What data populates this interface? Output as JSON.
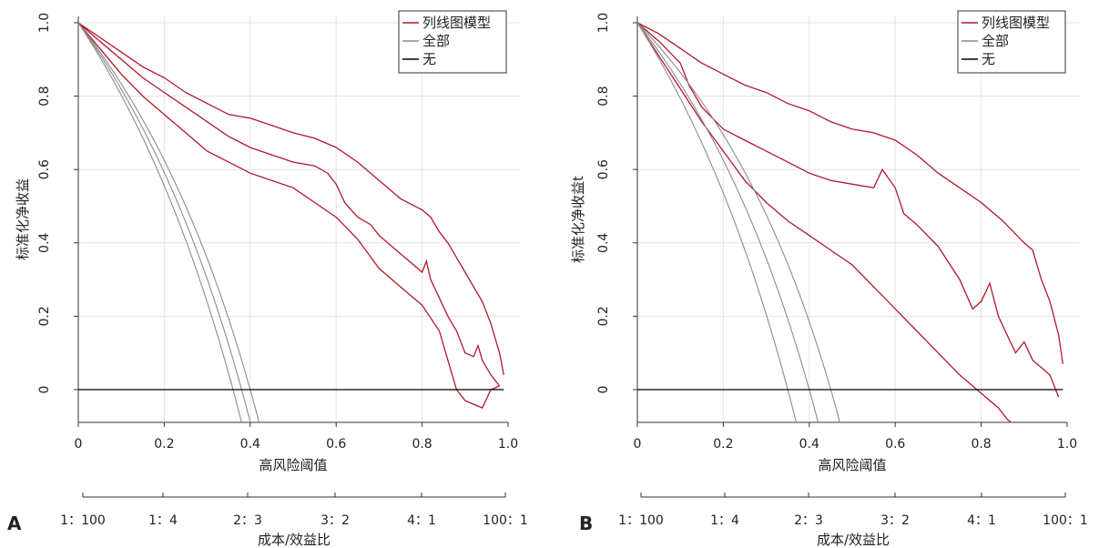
{
  "figure": {
    "panels": [
      {
        "letter": "A",
        "ylabel": "标准化净收益",
        "xlabel": "高风险阈值",
        "cost_label": "成本/效益比",
        "cost_ticks": [
          "1：100",
          "1：4",
          "2：3",
          "3：2",
          "4：1",
          "100：1"
        ]
      },
      {
        "letter": "B",
        "ylabel": "标准化净收益t",
        "xlabel": "高风险阈值",
        "cost_label": "成本/效益比",
        "cost_ticks": [
          "1：100",
          "1：4",
          "2：3",
          "3：2",
          "4：1",
          "100：1"
        ]
      }
    ]
  },
  "chart_data": [
    {
      "type": "line",
      "panel": "A",
      "title": "",
      "xlabel": "高风险阈值",
      "ylabel": "标准化净收益",
      "xlim": [
        0,
        1.0
      ],
      "ylim": [
        -0.09,
        1.0
      ],
      "x_ticks": [
        "0",
        "0.2",
        "0.4",
        "0.6",
        "0.8",
        "1.0"
      ],
      "y_ticks": [
        "0",
        "0.2",
        "0.4",
        "0.6",
        "0.8",
        "1.0"
      ],
      "grid": true,
      "legend_position": "top-right",
      "legend": [
        {
          "label": "列线图模型",
          "color": "#b2182b"
        },
        {
          "label": "全部",
          "color": "#8c8c8c"
        },
        {
          "label": "无",
          "color": "#000000"
        }
      ],
      "secondary_axis": {
        "label": "成本/效益比",
        "ticks": [
          "1：100",
          "1：4",
          "2：3",
          "3：2",
          "4：1",
          "100：1"
        ]
      },
      "series": [
        {
          "name": "列线图模型",
          "color": "#b2182b",
          "x": [
            0,
            0.05,
            0.1,
            0.15,
            0.2,
            0.25,
            0.3,
            0.35,
            0.4,
            0.45,
            0.5,
            0.55,
            0.6,
            0.65,
            0.7,
            0.75,
            0.8,
            0.82,
            0.84,
            0.86,
            0.88,
            0.9,
            0.92,
            0.94,
            0.96,
            0.98,
            0.99
          ],
          "y": [
            1.0,
            0.96,
            0.92,
            0.88,
            0.85,
            0.81,
            0.78,
            0.75,
            0.74,
            0.72,
            0.7,
            0.685,
            0.66,
            0.62,
            0.57,
            0.52,
            0.49,
            0.47,
            0.43,
            0.4,
            0.36,
            0.32,
            0.28,
            0.24,
            0.18,
            0.1,
            0.04
          ]
        },
        {
          "name": "",
          "color": "#b2182b",
          "x": [
            0,
            0.05,
            0.1,
            0.15,
            0.2,
            0.25,
            0.3,
            0.35,
            0.4,
            0.45,
            0.5,
            0.55,
            0.58,
            0.6,
            0.62,
            0.65,
            0.68,
            0.7,
            0.72,
            0.75,
            0.78,
            0.8,
            0.81,
            0.82,
            0.84,
            0.86,
            0.88,
            0.9,
            0.92,
            0.93,
            0.94,
            0.96,
            0.98
          ],
          "y": [
            1.0,
            0.95,
            0.9,
            0.85,
            0.81,
            0.77,
            0.73,
            0.69,
            0.66,
            0.64,
            0.62,
            0.61,
            0.59,
            0.56,
            0.51,
            0.47,
            0.45,
            0.42,
            0.4,
            0.37,
            0.34,
            0.32,
            0.35,
            0.3,
            0.25,
            0.2,
            0.16,
            0.1,
            0.09,
            0.12,
            0.08,
            0.04,
            0.01
          ]
        },
        {
          "name": "",
          "color": "#b2182b",
          "x": [
            0,
            0.05,
            0.1,
            0.15,
            0.2,
            0.25,
            0.3,
            0.35,
            0.4,
            0.45,
            0.5,
            0.55,
            0.6,
            0.65,
            0.7,
            0.75,
            0.8,
            0.84,
            0.86,
            0.88,
            0.9,
            0.92,
            0.94,
            0.96,
            0.98
          ],
          "y": [
            1.0,
            0.93,
            0.86,
            0.8,
            0.75,
            0.7,
            0.65,
            0.62,
            0.59,
            0.57,
            0.55,
            0.51,
            0.47,
            0.41,
            0.33,
            0.28,
            0.23,
            0.16,
            0.08,
            0.0,
            -0.03,
            -0.04,
            -0.05,
            0.0,
            0.01
          ]
        },
        {
          "name": "全部",
          "color": "#8c8c8c",
          "prevalence": 0.36
        },
        {
          "name": "",
          "color": "#8c8c8c",
          "prevalence": 0.38
        },
        {
          "name": "",
          "color": "#8c8c8c",
          "prevalence": 0.4
        },
        {
          "name": "无",
          "color": "#000000",
          "x": [
            0,
            0.99
          ],
          "y": [
            0,
            0
          ]
        }
      ]
    },
    {
      "type": "line",
      "panel": "B",
      "title": "",
      "xlabel": "高风险阈值",
      "ylabel": "标准化净收益t",
      "xlim": [
        0,
        1.0
      ],
      "ylim": [
        -0.09,
        1.0
      ],
      "x_ticks": [
        "0",
        "0.2",
        "0.4",
        "0.6",
        "0.8",
        "1.0"
      ],
      "y_ticks": [
        "0",
        "0.2",
        "0.4",
        "0.6",
        "0.8",
        "1.0"
      ],
      "grid": true,
      "legend_position": "top-right",
      "legend": [
        {
          "label": "列线图模型",
          "color": "#b2182b"
        },
        {
          "label": "全部",
          "color": "#8c8c8c"
        },
        {
          "label": "无",
          "color": "#000000"
        }
      ],
      "secondary_axis": {
        "label": "成本/效益比",
        "ticks": [
          "1：100",
          "1：4",
          "2：3",
          "3：2",
          "4：1",
          "100：1"
        ]
      },
      "series": [
        {
          "name": "列线图模型",
          "color": "#b2182b",
          "x": [
            0,
            0.05,
            0.1,
            0.15,
            0.2,
            0.25,
            0.3,
            0.35,
            0.4,
            0.45,
            0.5,
            0.55,
            0.6,
            0.65,
            0.7,
            0.75,
            0.8,
            0.85,
            0.9,
            0.92,
            0.94,
            0.96,
            0.98,
            0.99
          ],
          "y": [
            1.0,
            0.97,
            0.93,
            0.89,
            0.86,
            0.83,
            0.81,
            0.78,
            0.76,
            0.73,
            0.71,
            0.7,
            0.68,
            0.64,
            0.59,
            0.55,
            0.51,
            0.46,
            0.4,
            0.38,
            0.3,
            0.24,
            0.15,
            0.07
          ]
        },
        {
          "name": "",
          "color": "#b2182b",
          "x": [
            0,
            0.05,
            0.1,
            0.12,
            0.15,
            0.2,
            0.25,
            0.3,
            0.35,
            0.4,
            0.45,
            0.5,
            0.55,
            0.57,
            0.6,
            0.62,
            0.65,
            0.7,
            0.75,
            0.78,
            0.8,
            0.82,
            0.84,
            0.86,
            0.88,
            0.9,
            0.92,
            0.94,
            0.96,
            0.98
          ],
          "y": [
            1.0,
            0.95,
            0.89,
            0.83,
            0.77,
            0.71,
            0.68,
            0.65,
            0.62,
            0.59,
            0.57,
            0.56,
            0.55,
            0.6,
            0.55,
            0.48,
            0.45,
            0.39,
            0.3,
            0.22,
            0.24,
            0.29,
            0.2,
            0.15,
            0.1,
            0.13,
            0.08,
            0.06,
            0.04,
            -0.02
          ]
        },
        {
          "name": "",
          "color": "#b2182b",
          "x": [
            0,
            0.05,
            0.1,
            0.15,
            0.2,
            0.25,
            0.3,
            0.35,
            0.4,
            0.45,
            0.5,
            0.55,
            0.6,
            0.65,
            0.7,
            0.75,
            0.8,
            0.84,
            0.86,
            0.88
          ],
          "y": [
            1.0,
            0.91,
            0.82,
            0.73,
            0.65,
            0.57,
            0.51,
            0.46,
            0.42,
            0.38,
            0.34,
            0.28,
            0.22,
            0.16,
            0.1,
            0.04,
            -0.01,
            -0.05,
            -0.08,
            -0.1
          ]
        },
        {
          "name": "全部",
          "color": "#8c8c8c",
          "prevalence": 0.35
        },
        {
          "name": "",
          "color": "#8c8c8c",
          "prevalence": 0.4
        },
        {
          "name": "",
          "color": "#8c8c8c",
          "prevalence": 0.45
        },
        {
          "name": "无",
          "color": "#000000",
          "x": [
            0,
            0.99
          ],
          "y": [
            0,
            0
          ]
        }
      ]
    }
  ]
}
